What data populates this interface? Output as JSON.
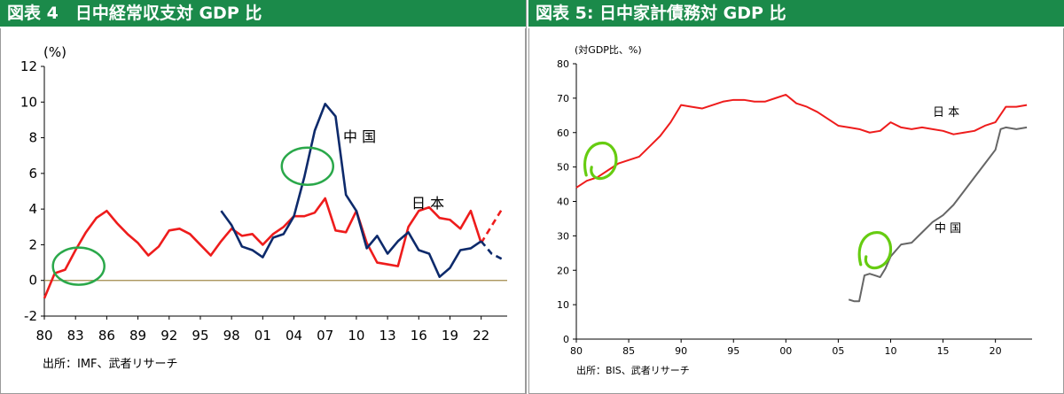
{
  "charts": {
    "left": {
      "title": "図表 4　日中経常収支対 GDP 比",
      "unit_label": "(%)",
      "source": "出所：IMF、武者リサーチ",
      "series_labels": {
        "china": "中 国",
        "japan": "日 本"
      },
      "colors": {
        "china": "#0d2a6b",
        "japan": "#ee1c1c",
        "zero_line": "#a08a4a",
        "marker": "#2aa84a"
      }
    },
    "right": {
      "title": "図表 5: 日中家計債務対 GDP 比",
      "unit_label": "(対GDP比、%)",
      "source": "出所：BIS、武者リサーチ",
      "series_labels": {
        "japan": "日 本",
        "china": "中 国"
      },
      "colors": {
        "japan": "#ee1c1c",
        "china": "#666666",
        "marker": "#66cc11"
      }
    }
  },
  "chart_data": [
    {
      "type": "line",
      "title": "図表 4　日中経常収支対 GDP 比",
      "ylabel": "(%)",
      "ylim": [
        -2,
        12
      ],
      "yticks": [
        -2,
        0,
        2,
        4,
        6,
        8,
        10,
        12
      ],
      "xlim": [
        1980,
        2024.5
      ],
      "xticks": [
        1980,
        1983,
        1986,
        1989,
        1992,
        1995,
        1998,
        2001,
        2004,
        2007,
        2010,
        2013,
        2016,
        2019,
        2022
      ],
      "xtick_labels": [
        "80",
        "83",
        "86",
        "89",
        "92",
        "95",
        "98",
        "01",
        "04",
        "07",
        "10",
        "13",
        "16",
        "19",
        "22"
      ],
      "series": [
        {
          "name": "日 本",
          "x": [
            1980,
            1981,
            1982,
            1983,
            1984,
            1985,
            1986,
            1987,
            1988,
            1989,
            1990,
            1991,
            1992,
            1993,
            1994,
            1995,
            1996,
            1997,
            1998,
            1999,
            2000,
            2001,
            2002,
            2003,
            2004,
            2005,
            2006,
            2007,
            2008,
            2009,
            2010,
            2011,
            2012,
            2013,
            2014,
            2015,
            2016,
            2017,
            2018,
            2019,
            2020,
            2021,
            2022
          ],
          "y": [
            -1.0,
            0.4,
            0.6,
            1.7,
            2.7,
            3.5,
            3.9,
            3.2,
            2.6,
            2.1,
            1.4,
            1.9,
            2.8,
            2.9,
            2.6,
            2.0,
            1.4,
            2.2,
            2.9,
            2.5,
            2.6,
            2.0,
            2.6,
            3.0,
            3.6,
            3.6,
            3.8,
            4.6,
            2.8,
            2.7,
            3.9,
            2.1,
            1.0,
            0.9,
            0.8,
            3.0,
            3.9,
            4.1,
            3.5,
            3.4,
            2.9,
            3.9,
            2.1
          ]
        },
        {
          "name": "日 本",
          "style": "dashed",
          "x": [
            2022,
            2024
          ],
          "y": [
            2.1,
            4.0
          ]
        },
        {
          "name": "中 国",
          "x": [
            1997,
            1998,
            1999,
            2000,
            2001,
            2002,
            2003,
            2004,
            2005,
            2006,
            2007,
            2008,
            2009,
            2010,
            2011,
            2012,
            2013,
            2014,
            2015,
            2016,
            2017,
            2018,
            2019,
            2020,
            2021,
            2022
          ],
          "y": [
            3.9,
            3.1,
            1.9,
            1.7,
            1.3,
            2.4,
            2.6,
            3.6,
            5.8,
            8.4,
            9.9,
            9.2,
            4.8,
            3.9,
            1.8,
            2.5,
            1.5,
            2.2,
            2.7,
            1.7,
            1.5,
            0.2,
            0.7,
            1.7,
            1.8,
            2.2
          ]
        },
        {
          "name": "中 国",
          "style": "dashed",
          "x": [
            2022,
            2023,
            2024
          ],
          "y": [
            2.2,
            1.5,
            1.2
          ]
        }
      ],
      "markers": [
        {
          "cx": 1983.3,
          "cy": 0.8
        },
        {
          "cx": 2005.3,
          "cy": 6.4
        }
      ]
    },
    {
      "type": "line",
      "title": "図表 5: 日中家計債務対 GDP 比",
      "ylabel": "(対GDP比、%)",
      "ylim": [
        0,
        80
      ],
      "yticks": [
        0,
        10,
        20,
        30,
        40,
        50,
        60,
        70,
        80
      ],
      "xlim": [
        1980,
        2023.5
      ],
      "xticks": [
        1980,
        1985,
        1990,
        1995,
        2000,
        2005,
        2010,
        2015,
        2020
      ],
      "xtick_labels": [
        "80",
        "85",
        "90",
        "95",
        "00",
        "05",
        "10",
        "15",
        "20"
      ],
      "series": [
        {
          "name": "日 本",
          "x": [
            1980,
            1981,
            1982,
            1983,
            1984,
            1985,
            1986,
            1987,
            1988,
            1989,
            1990,
            1991,
            1992,
            1993,
            1994,
            1995,
            1996,
            1997,
            1998,
            1999,
            2000,
            2001,
            2002,
            2003,
            2004,
            2005,
            2006,
            2007,
            2008,
            2009,
            2010,
            2011,
            2012,
            2013,
            2014,
            2015,
            2016,
            2017,
            2018,
            2019,
            2020,
            2021,
            2022,
            2023
          ],
          "y": [
            44,
            46,
            47,
            49,
            51,
            52,
            53,
            56,
            59,
            63,
            68,
            67.5,
            67,
            68,
            69,
            69.5,
            69.5,
            69,
            69,
            70,
            71,
            68.5,
            67.5,
            66,
            64,
            62,
            61.5,
            61,
            60,
            60.5,
            63,
            61.5,
            61,
            61.5,
            61,
            60.5,
            59.5,
            60,
            60.5,
            62,
            63,
            67.5,
            67.5,
            68
          ]
        },
        {
          "name": "中 国",
          "x": [
            2006,
            2006.5,
            2007,
            2007.5,
            2008,
            2008.5,
            2009,
            2009.5,
            2010,
            2011,
            2012,
            2013,
            2014,
            2015,
            2016,
            2017,
            2018,
            2019,
            2020,
            2020.5,
            2021,
            2022,
            2023
          ],
          "y": [
            11.5,
            11,
            11,
            18.5,
            19,
            18.5,
            18,
            20.5,
            24,
            27.5,
            28,
            31,
            34,
            36,
            39,
            43,
            47,
            51,
            55,
            61,
            61.5,
            61,
            61.5
          ]
        }
      ],
      "markers": [
        {
          "cx": 1982.3,
          "cy": 52
        },
        {
          "cx": 2008.5,
          "cy": 26
        }
      ]
    }
  ]
}
